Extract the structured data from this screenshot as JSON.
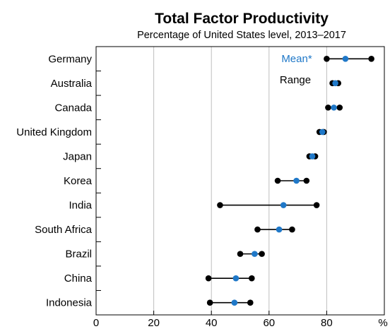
{
  "chart_data": {
    "type": "dot-range",
    "title": "Total Factor Productivity",
    "subtitle": "Percentage of United States level, 2013–2017",
    "x_unit_label": "%",
    "xlim": [
      0,
      100
    ],
    "x_ticks": [
      0,
      20,
      40,
      60,
      80
    ],
    "grid": true,
    "legend": {
      "mean_label": "Mean*",
      "range_label": "Range",
      "placement": "top-right"
    },
    "colors": {
      "mean": "#1f78c8",
      "range": "#000000",
      "grid": "#bfbfbf"
    },
    "categories": [
      "Germany",
      "Australia",
      "Canada",
      "United Kingdom",
      "Japan",
      "Korea",
      "India",
      "South Africa",
      "Brazil",
      "China",
      "Indonesia"
    ],
    "series": [
      {
        "name": "Mean*",
        "values": [
          86.5,
          83.0,
          82.5,
          78.5,
          75.0,
          69.5,
          65.0,
          63.5,
          55.0,
          48.5,
          48.0
        ]
      },
      {
        "name": "Range",
        "min": [
          80.0,
          82.0,
          80.5,
          77.5,
          74.0,
          63.0,
          43.0,
          56.0,
          50.0,
          39.0,
          39.5
        ],
        "max": [
          95.5,
          84.0,
          84.5,
          79.0,
          76.0,
          73.0,
          76.5,
          68.0,
          57.5,
          54.0,
          53.5
        ]
      }
    ]
  }
}
